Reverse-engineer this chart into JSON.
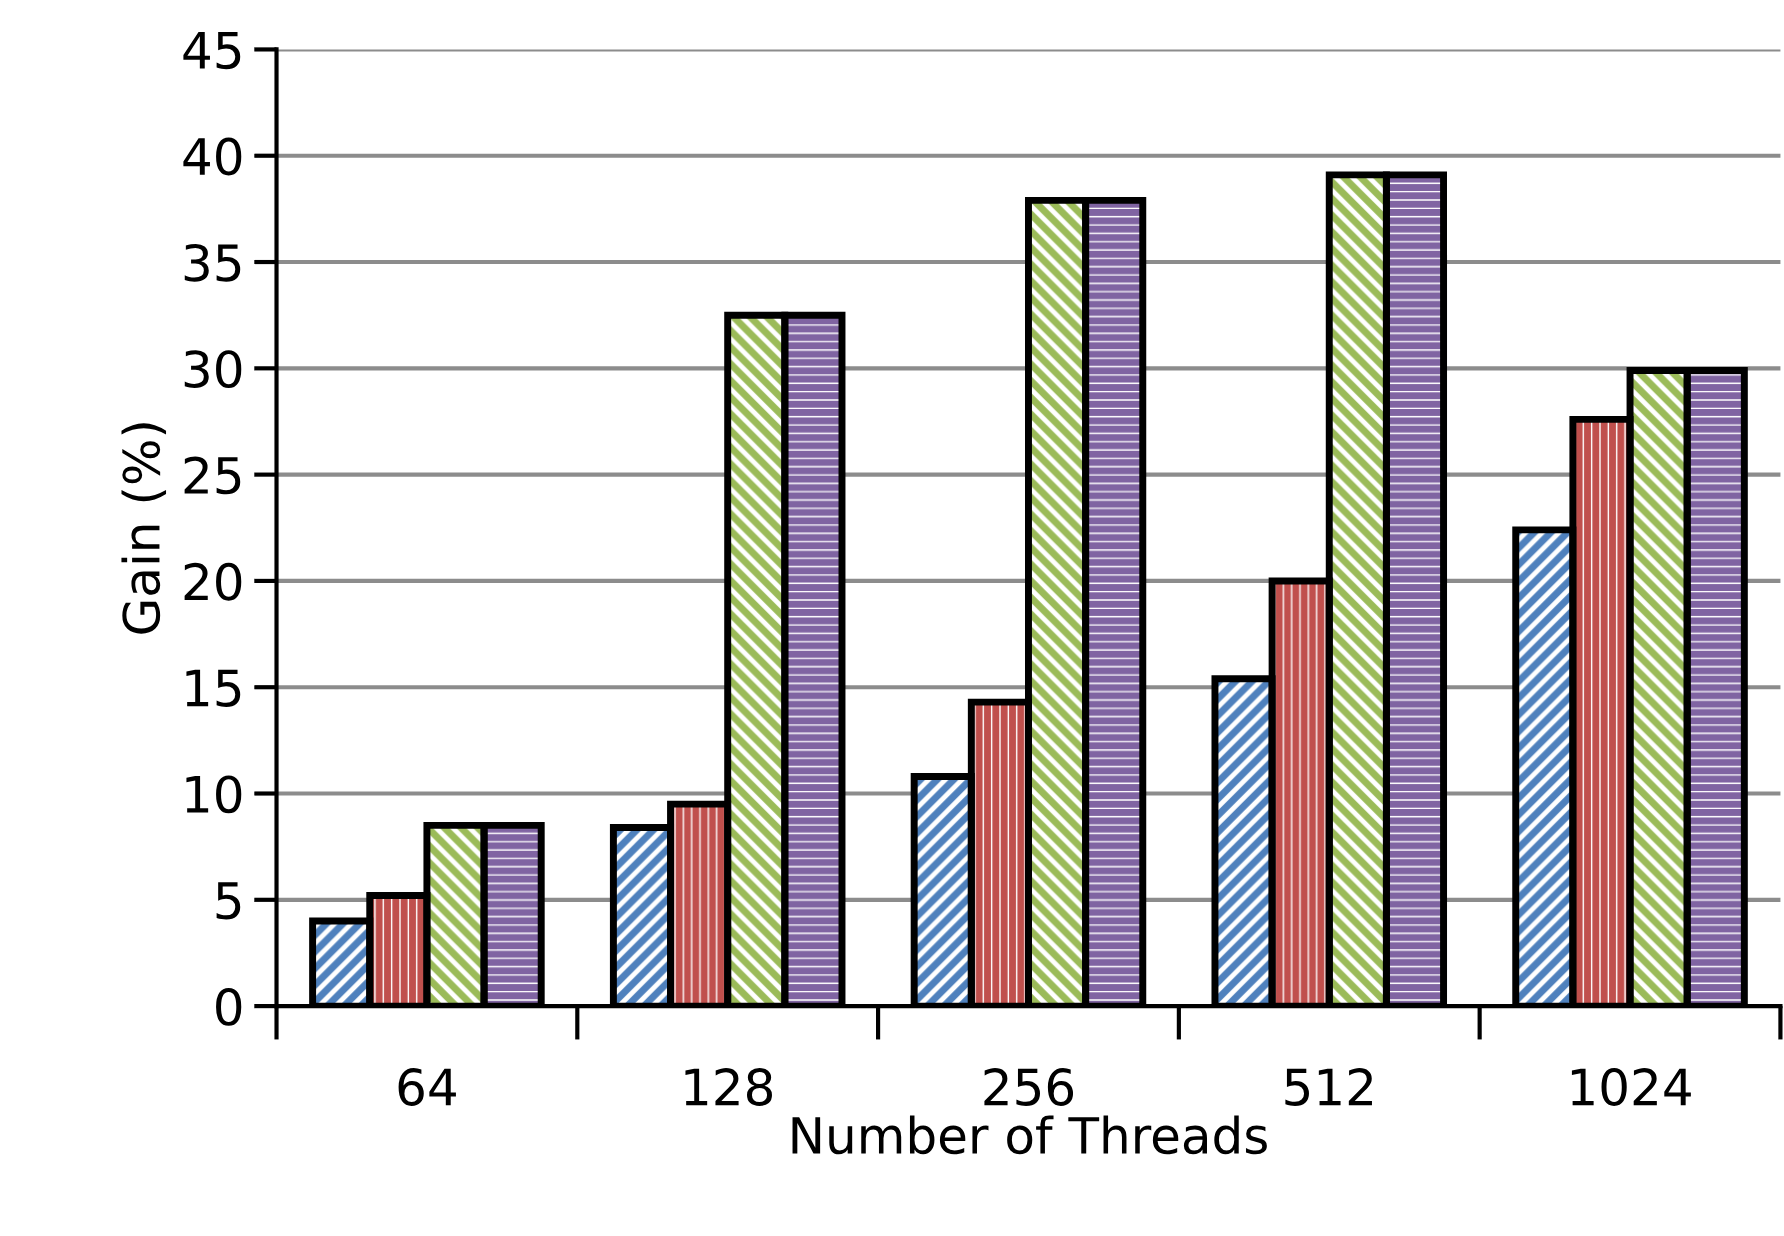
{
  "chart_data": {
    "type": "bar",
    "xlabel": "Number of Threads",
    "ylabel": "Gain (%)",
    "categories": [
      "64",
      "128",
      "256",
      "512",
      "1024"
    ],
    "series": [
      {
        "color": "#4f81bd",
        "values": [
          4.0,
          8.4,
          10.8,
          15.4,
          22.4
        ]
      },
      {
        "color": "#c0504d",
        "values": [
          5.2,
          9.5,
          14.3,
          20.0,
          27.6
        ]
      },
      {
        "color": "#9bbb59",
        "values": [
          8.5,
          32.5,
          37.9,
          39.1,
          29.9
        ]
      },
      {
        "color": "#8064a2",
        "values": [
          8.5,
          32.5,
          37.9,
          39.1,
          29.9
        ]
      }
    ],
    "ylim": [
      0,
      45
    ],
    "yticks": [
      0,
      5,
      10,
      15,
      20,
      25,
      30,
      35,
      40,
      45
    ],
    "grid": "y"
  }
}
